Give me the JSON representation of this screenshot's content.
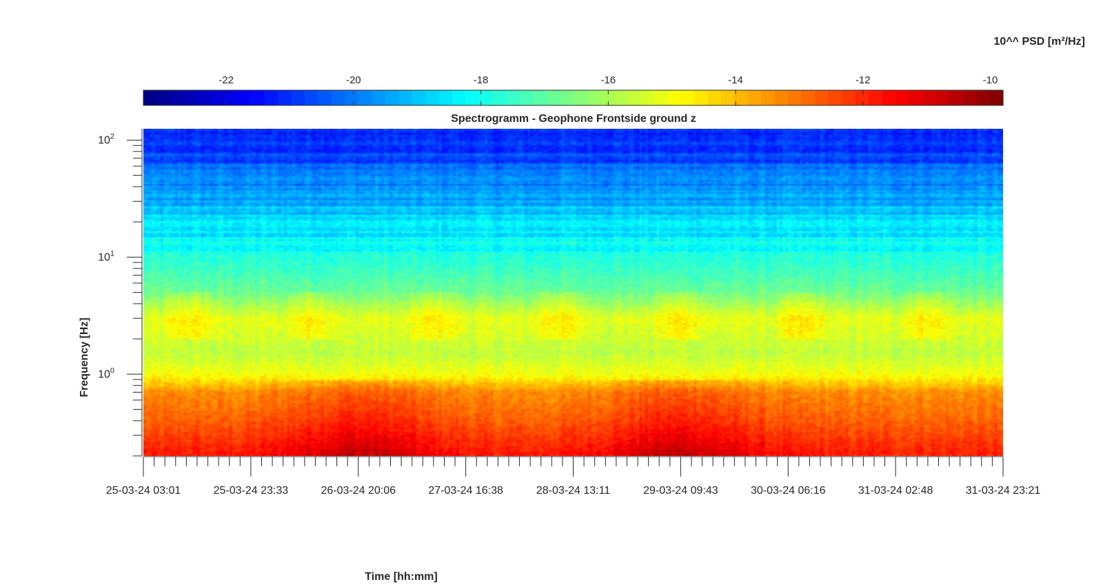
{
  "chart_data": {
    "type": "heatmap",
    "title": "Spectrogramm - Geophone Frontside ground z",
    "xlabel": "Time [hh:mm]",
    "ylabel": "Frequency [Hz]",
    "y_scale": "log",
    "y_ticks": [
      {
        "value": 1,
        "base": "10",
        "exp": "0"
      },
      {
        "value": 10,
        "base": "10",
        "exp": "1"
      },
      {
        "value": 100,
        "base": "10",
        "exp": "2"
      }
    ],
    "ylim": [
      0.2,
      125
    ],
    "x_tick_labels": [
      "25-03-24 03:01",
      "25-03-24 23:33",
      "26-03-24 20:06",
      "27-03-24 16:38",
      "28-03-24 13:11",
      "29-03-24 09:43",
      "30-03-24 06:16",
      "31-03-24 02:48",
      "31-03-24 23:21"
    ],
    "colorbar": {
      "label": "10^^ PSD [m²/Hz]",
      "ticks": [
        "-22",
        "-20",
        "-18",
        "-16",
        "-14",
        "-12",
        "-10"
      ],
      "tick_values": [
        -22,
        -20,
        -18,
        -16,
        -14,
        -12,
        -10
      ],
      "range": [
        -23.3,
        -9.8
      ],
      "colormap": "jet"
    },
    "frequency_profile": [
      {
        "freq": 125,
        "log_psd": -21.3
      },
      {
        "freq": 60,
        "log_psd": -20.4
      },
      {
        "freq": 25,
        "log_psd": -19.0
      },
      {
        "freq": 10,
        "log_psd": -17.8
      },
      {
        "freq": 5,
        "log_psd": -16.8
      },
      {
        "freq": 3,
        "log_psd": -15.2
      },
      {
        "freq": 1.5,
        "log_psd": -15.7
      },
      {
        "freq": 1.0,
        "log_psd": -15.0
      },
      {
        "freq": 0.7,
        "log_psd": -13.4
      },
      {
        "freq": 0.4,
        "log_psd": -12.8
      },
      {
        "freq": 0.2,
        "log_psd": -11.8
      }
    ],
    "microseism_peaks": [
      {
        "time": "26-03-24 20:06",
        "log_psd_low_freq": -11.0
      },
      {
        "time": "29-03-24 09:43",
        "log_psd_low_freq": -11.1
      }
    ]
  }
}
